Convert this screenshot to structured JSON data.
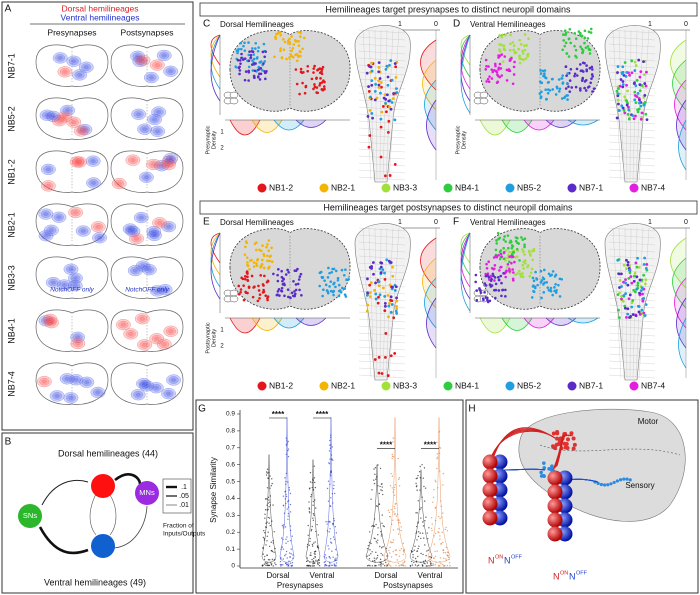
{
  "A": {
    "label": "A",
    "legend": [
      "Dorsal hemilineages",
      "Ventral hemilineages"
    ],
    "columns": [
      "Presynapses",
      "Postsynapses"
    ],
    "rows": [
      "NB7-1",
      "NB5-2",
      "NB1-2",
      "NB2-1",
      "NB3-3",
      "NB4-1",
      "NB7-4"
    ],
    "notes": [
      "NotchOFF only",
      "NotchOFF only"
    ]
  },
  "B": {
    "label": "B",
    "dorsal": "Dorsal hemilineages (44)",
    "ventral": "Ventral hemilineages (49)",
    "inputs": "SNs",
    "outputs": "MNs",
    "scale": [
      ".1",
      ".05",
      ".01"
    ],
    "scale_caption": [
      "Fraction of",
      "Inputs/Outputs"
    ]
  },
  "C_D": {
    "title": "Hemilineages target presynapses to distinct neuropil domains",
    "panels": [
      {
        "label": "C",
        "title": "Dorsal Hemilineages",
        "scale": [
          "1",
          "0"
        ]
      },
      {
        "label": "D",
        "title": "Ventral Hemilineages",
        "scale": [
          "1",
          "0"
        ]
      }
    ],
    "density_label": [
      "Presynaptic",
      "Density"
    ],
    "density_ticks": [
      "1",
      "2"
    ],
    "legend": [
      {
        "name": "NB1-2",
        "color": "#e4161b"
      },
      {
        "name": "NB2-1",
        "color": "#f4b400"
      },
      {
        "name": "NB3-3",
        "color": "#a2e03a"
      },
      {
        "name": "NB4-1",
        "color": "#2fcc3f"
      },
      {
        "name": "NB5-2",
        "color": "#1f9fe0"
      },
      {
        "name": "NB7-1",
        "color": "#5b2bc8"
      },
      {
        "name": "NB7-4",
        "color": "#e21fe0"
      }
    ]
  },
  "E_F": {
    "title": "Hemilineages target postsynapses to distinct neuropil domains",
    "panels": [
      {
        "label": "E",
        "title": "Dorsal Hemilineages",
        "scale": [
          "1",
          "0"
        ]
      },
      {
        "label": "F",
        "title": "Ventral Hemilineages",
        "scale": [
          "1",
          "0"
        ]
      }
    ],
    "density_label": [
      "Postsynaptic",
      "Density"
    ],
    "density_ticks": [
      "1",
      "2"
    ],
    "legend": [
      {
        "name": "NB1-2",
        "color": "#e4161b"
      },
      {
        "name": "NB2-1",
        "color": "#f4b400"
      },
      {
        "name": "NB3-3",
        "color": "#a2e03a"
      },
      {
        "name": "NB4-1",
        "color": "#2fcc3f"
      },
      {
        "name": "NB5-2",
        "color": "#1f9fe0"
      },
      {
        "name": "NB7-1",
        "color": "#5b2bc8"
      },
      {
        "name": "NB7-4",
        "color": "#e21fe0"
      }
    ]
  },
  "G": {
    "label": "G",
    "ylabel": "Synapse Similarity",
    "yticks": [
      0,
      0.1,
      0.2,
      0.3,
      0.4,
      0.5,
      0.6,
      0.7,
      0.8,
      0.9
    ],
    "categories": [
      "Dorsal",
      "Ventral",
      "Dorsal",
      "Ventral"
    ],
    "groups": [
      "Presynapses",
      "Postsynapses"
    ],
    "significance": [
      "****",
      "****",
      "****",
      "****"
    ]
  },
  "H": {
    "label": "H",
    "motor": "Motor",
    "sensory": "Sensory",
    "neurons": [
      {
        "base": "N",
        "sup": "ON"
      },
      {
        "base": "N",
        "sup": "OFF"
      },
      {
        "base": "N",
        "sup": "ON"
      },
      {
        "base": "N",
        "sup": "OFF"
      }
    ]
  }
}
